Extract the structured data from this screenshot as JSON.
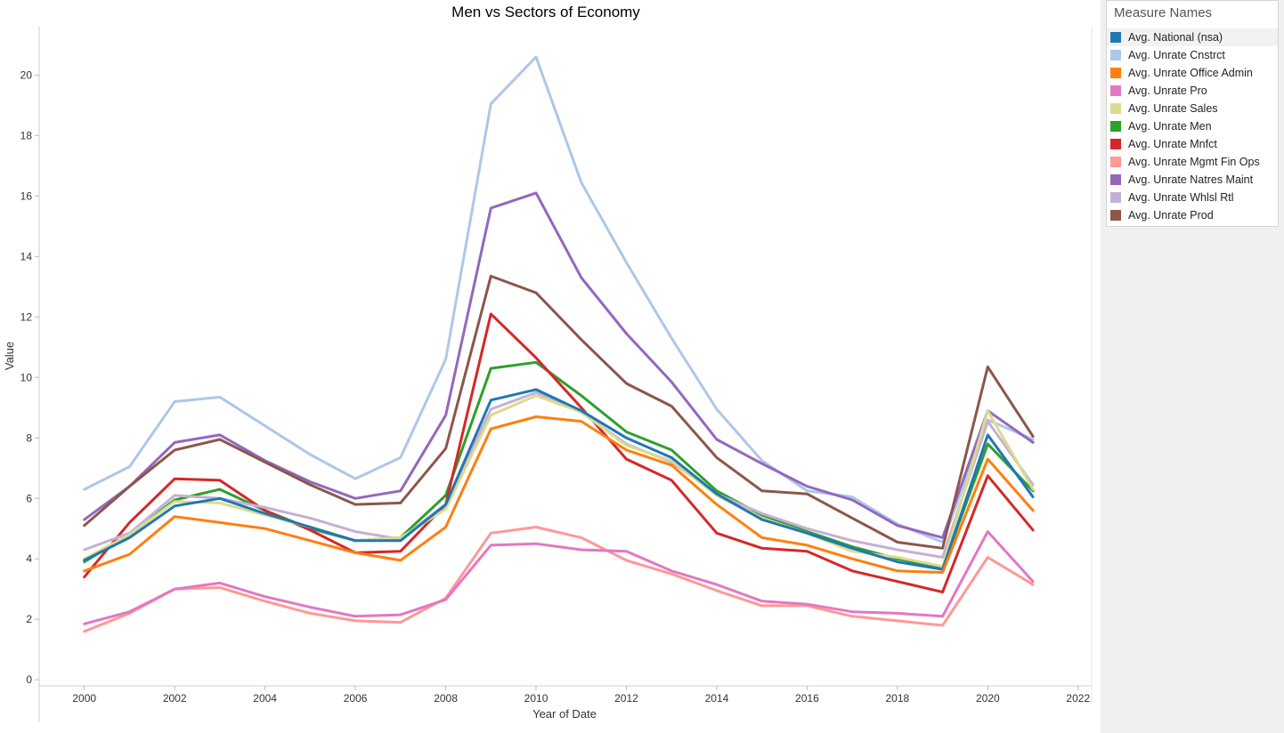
{
  "legend": {
    "title": "Measure Names"
  },
  "chart_data": {
    "type": "line",
    "title": "Men vs Sectors of Economy",
    "xlabel": "Year of Date",
    "ylabel": "Value",
    "xlim": [
      1999,
      2022.3
    ],
    "ylim": [
      -0.2,
      21.6
    ],
    "x_ticks": [
      2000,
      2002,
      2004,
      2006,
      2008,
      2010,
      2012,
      2014,
      2016,
      2018,
      2020,
      2022
    ],
    "y_ticks": [
      0,
      2,
      4,
      6,
      8,
      10,
      12,
      14,
      16,
      18,
      20
    ],
    "grid": false,
    "legend_position": "right",
    "x": [
      2000,
      2001,
      2002,
      2003,
      2004,
      2005,
      2006,
      2007,
      2008,
      2009,
      2010,
      2011,
      2012,
      2013,
      2014,
      2015,
      2016,
      2017,
      2018,
      2019,
      2020,
      2021
    ],
    "series": [
      {
        "name": "Avg. National (nsa)",
        "color": "#1f77b4",
        "values": [
          3.95,
          4.7,
          5.75,
          6.0,
          5.5,
          5.05,
          4.6,
          4.6,
          5.8,
          9.25,
          9.6,
          8.9,
          8.0,
          7.35,
          6.15,
          5.3,
          4.85,
          4.35,
          3.9,
          3.65,
          8.1,
          6.05
        ]
      },
      {
        "name": "Avg. Unrate Cnstrct",
        "color": "#aec7e8",
        "values": [
          6.3,
          7.05,
          9.2,
          9.35,
          8.4,
          7.45,
          6.65,
          7.35,
          10.6,
          19.05,
          20.6,
          16.45,
          13.8,
          11.3,
          8.95,
          7.25,
          6.25,
          6.05,
          5.15,
          4.55,
          8.6,
          7.95
        ]
      },
      {
        "name": "Avg. Unrate Office Admin",
        "color": "#ff7f0e",
        "values": [
          3.6,
          4.15,
          5.4,
          5.2,
          5.0,
          4.6,
          4.2,
          3.95,
          5.05,
          8.3,
          8.7,
          8.55,
          7.6,
          7.1,
          5.8,
          4.7,
          4.45,
          4.0,
          3.6,
          3.55,
          7.3,
          5.6
        ]
      },
      {
        "name": "Avg. Unrate Pro",
        "color": "#e377c2",
        "values": [
          1.85,
          2.25,
          3.0,
          3.2,
          2.75,
          2.4,
          2.1,
          2.15,
          2.65,
          4.45,
          4.5,
          4.3,
          4.25,
          3.6,
          3.15,
          2.6,
          2.5,
          2.25,
          2.2,
          2.1,
          4.9,
          3.25
        ]
      },
      {
        "name": "Avg. Unrate Sales",
        "color": "#dbdb8d",
        "values": [
          4.0,
          4.8,
          5.9,
          5.85,
          5.45,
          5.05,
          4.6,
          4.7,
          5.65,
          8.75,
          9.4,
          8.85,
          7.75,
          7.25,
          6.1,
          5.35,
          4.85,
          4.25,
          4.05,
          3.75,
          8.9,
          6.3
        ]
      },
      {
        "name": "Avg. Unrate Men",
        "color": "#2ca02c",
        "values": [
          3.9,
          4.8,
          5.95,
          6.3,
          5.6,
          5.0,
          4.6,
          4.7,
          6.1,
          10.3,
          10.5,
          9.4,
          8.2,
          7.6,
          6.25,
          5.45,
          4.9,
          4.4,
          4.0,
          3.7,
          7.8,
          6.25
        ]
      },
      {
        "name": "Avg. Unrate Mnfct",
        "color": "#d62728",
        "values": [
          3.4,
          5.2,
          6.65,
          6.6,
          5.6,
          4.95,
          4.2,
          4.25,
          5.8,
          12.1,
          10.65,
          9.0,
          7.3,
          6.6,
          4.85,
          4.35,
          4.25,
          3.6,
          3.25,
          2.9,
          6.75,
          4.95
        ]
      },
      {
        "name": "Avg. Unrate Mgmt Fin Ops",
        "color": "#ff9896",
        "values": [
          1.6,
          2.2,
          3.0,
          3.05,
          2.6,
          2.2,
          1.95,
          1.9,
          2.7,
          4.85,
          5.05,
          4.7,
          3.95,
          3.5,
          2.95,
          2.45,
          2.45,
          2.1,
          1.95,
          1.8,
          4.05,
          3.15
        ]
      },
      {
        "name": "Avg. Unrate Natres Maint",
        "color": "#9467bd",
        "values": [
          5.3,
          6.4,
          7.85,
          8.1,
          7.25,
          6.55,
          6.0,
          6.25,
          8.75,
          15.6,
          16.1,
          13.3,
          11.45,
          9.85,
          7.95,
          7.15,
          6.4,
          5.95,
          5.1,
          4.7,
          8.9,
          7.85
        ]
      },
      {
        "name": "Avg. Unrate Whlsl Rtl",
        "color": "#c5b0d5",
        "values": [
          4.3,
          4.85,
          6.1,
          6.0,
          5.7,
          5.35,
          4.9,
          4.65,
          5.8,
          8.95,
          9.5,
          8.85,
          7.8,
          7.2,
          6.15,
          5.5,
          5.0,
          4.6,
          4.3,
          4.05,
          8.55,
          6.45
        ]
      },
      {
        "name": "Avg. Unrate Prod",
        "color": "#8c564b",
        "values": [
          5.1,
          6.4,
          7.6,
          7.95,
          7.2,
          6.45,
          5.8,
          5.85,
          7.65,
          13.35,
          12.8,
          11.25,
          9.8,
          9.05,
          7.35,
          6.25,
          6.15,
          5.35,
          4.55,
          4.35,
          10.35,
          8.05
        ]
      }
    ]
  }
}
